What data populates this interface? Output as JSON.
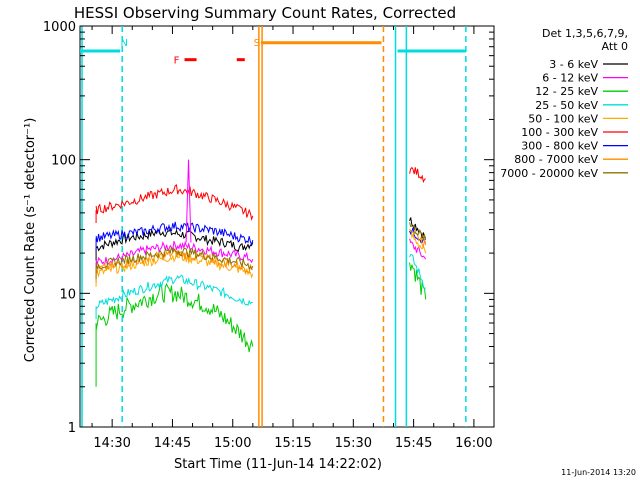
{
  "chart_data": {
    "type": "line",
    "title": "HESSI Observing Summary Count Rates, Corrected",
    "xlabel": "Start Time (11-Jun-14 14:22:02)",
    "ylabel": "Corrected Count Rate (s⁻¹ detector⁻¹)",
    "y_scale": "log",
    "ylim": [
      1,
      1000
    ],
    "xlim_minutes": [
      862,
      965
    ],
    "x_ticks": [
      {
        "label": "14:30",
        "minutes": 870
      },
      {
        "label": "14:45",
        "minutes": 885
      },
      {
        "label": "15:00",
        "minutes": 900
      },
      {
        "label": "15:15",
        "minutes": 915
      },
      {
        "label": "15:30",
        "minutes": 930
      },
      {
        "label": "15:45",
        "minutes": 945
      },
      {
        "label": "16:00",
        "minutes": 960
      }
    ],
    "y_ticks": [
      {
        "label": "1",
        "value": 1
      },
      {
        "label": "10",
        "value": 10
      },
      {
        "label": "100",
        "value": 100
      },
      {
        "label": "1000",
        "value": 1000
      }
    ],
    "legend": {
      "header": [
        "Det 1,3,5,6,7,9,",
        "Att 0"
      ],
      "placement": "right"
    },
    "series": [
      {
        "name": "3 - 6 keV",
        "color": "#000000",
        "points": [
          [
            866,
            22
          ],
          [
            870,
            24
          ],
          [
            874,
            26
          ],
          [
            878,
            27
          ],
          [
            882,
            29
          ],
          [
            886,
            28
          ],
          [
            890,
            27
          ],
          [
            894,
            25
          ],
          [
            898,
            24
          ],
          [
            902,
            22
          ],
          [
            905,
            24
          ]
        ],
        "points2": [
          [
            944,
            36
          ],
          [
            946,
            31
          ],
          [
            948,
            26
          ]
        ]
      },
      {
        "name": "6 - 12 keV",
        "color": "#ff00ff",
        "points": [
          [
            866,
            17
          ],
          [
            870,
            18
          ],
          [
            874,
            19
          ],
          [
            878,
            21
          ],
          [
            882,
            22
          ],
          [
            886,
            23
          ],
          [
            890,
            22
          ],
          [
            894,
            21
          ],
          [
            898,
            20
          ],
          [
            902,
            19
          ],
          [
            905,
            18
          ]
        ],
        "points2": [
          [
            944,
            24
          ],
          [
            946,
            21
          ],
          [
            948,
            18
          ]
        ]
      },
      {
        "name": "12 - 25 keV",
        "color": "#00cc00",
        "points": [
          [
            866,
            6
          ],
          [
            870,
            7
          ],
          [
            874,
            8
          ],
          [
            878,
            9
          ],
          [
            882,
            10
          ],
          [
            886,
            10
          ],
          [
            890,
            9
          ],
          [
            894,
            8
          ],
          [
            898,
            6.5
          ],
          [
            902,
            5
          ],
          [
            905,
            4
          ]
        ],
        "points2": [
          [
            944,
            18
          ],
          [
            946,
            13
          ],
          [
            948,
            9
          ]
        ]
      },
      {
        "name": "25 - 50 keV",
        "color": "#00dddd",
        "points": [
          [
            866,
            8
          ],
          [
            870,
            9
          ],
          [
            874,
            10
          ],
          [
            878,
            11
          ],
          [
            882,
            12
          ],
          [
            886,
            13
          ],
          [
            890,
            12
          ],
          [
            894,
            11
          ],
          [
            898,
            10
          ],
          [
            902,
            9
          ],
          [
            905,
            8.5
          ]
        ],
        "points2": [
          [
            944,
            20
          ],
          [
            946,
            15
          ],
          [
            948,
            11
          ]
        ]
      },
      {
        "name": "50 - 100 keV",
        "color": "#ffaa00",
        "points": [
          [
            866,
            14
          ],
          [
            870,
            15
          ],
          [
            874,
            16
          ],
          [
            878,
            17
          ],
          [
            882,
            18
          ],
          [
            886,
            19
          ],
          [
            890,
            18
          ],
          [
            894,
            17
          ],
          [
            898,
            16
          ],
          [
            902,
            15
          ],
          [
            905,
            14
          ]
        ],
        "points2": [
          [
            944,
            28
          ],
          [
            946,
            24
          ],
          [
            948,
            20
          ]
        ]
      },
      {
        "name": "100 - 300 keV",
        "color": "#ff0000",
        "points": [
          [
            866,
            42
          ],
          [
            870,
            45
          ],
          [
            874,
            48
          ],
          [
            878,
            52
          ],
          [
            882,
            56
          ],
          [
            886,
            60
          ],
          [
            890,
            57
          ],
          [
            894,
            52
          ],
          [
            898,
            47
          ],
          [
            902,
            42
          ],
          [
            905,
            38
          ]
        ],
        "points2": [
          [
            944,
            85
          ],
          [
            946,
            80
          ],
          [
            948,
            72
          ]
        ]
      },
      {
        "name": "300 - 800 keV",
        "color": "#0000ff",
        "points": [
          [
            866,
            26
          ],
          [
            870,
            27
          ],
          [
            874,
            28
          ],
          [
            878,
            29
          ],
          [
            882,
            31
          ],
          [
            886,
            32
          ],
          [
            890,
            31
          ],
          [
            894,
            30
          ],
          [
            898,
            28
          ],
          [
            902,
            26
          ],
          [
            905,
            25
          ]
        ],
        "points2": [
          [
            944,
            30
          ],
          [
            946,
            27
          ],
          [
            948,
            24
          ]
        ]
      },
      {
        "name": "800 - 7000 keV",
        "color": "#ff8c00",
        "points": [
          [
            866,
            15
          ],
          [
            870,
            16
          ],
          [
            874,
            17
          ],
          [
            878,
            18
          ],
          [
            882,
            19
          ],
          [
            886,
            20
          ],
          [
            890,
            19
          ],
          [
            894,
            18
          ],
          [
            898,
            17
          ],
          [
            902,
            16
          ],
          [
            905,
            15
          ]
        ],
        "points2": [
          [
            944,
            31
          ],
          [
            946,
            27
          ],
          [
            948,
            23
          ]
        ]
      },
      {
        "name": "7000 - 20000 keV",
        "color": "#8b7500",
        "points": [
          [
            866,
            16
          ],
          [
            870,
            17
          ],
          [
            874,
            18
          ],
          [
            878,
            19
          ],
          [
            882,
            20
          ],
          [
            886,
            21
          ],
          [
            890,
            20
          ],
          [
            894,
            19
          ],
          [
            898,
            18
          ],
          [
            902,
            17
          ],
          [
            905,
            16
          ]
        ],
        "points2": [
          [
            944,
            33
          ],
          [
            946,
            29
          ],
          [
            948,
            25
          ]
        ]
      }
    ],
    "spike": {
      "minutes": 889,
      "value": 100,
      "color": "#ff00ff"
    },
    "annotations": [
      {
        "label": "N",
        "minutes": 873,
        "color": "#00dddd"
      },
      {
        "label": "F",
        "minutes": 886,
        "color": "#ff0000"
      },
      {
        "label": "S",
        "minutes": 906,
        "color": "#ff8c00"
      }
    ],
    "flare_bars": [
      {
        "from": 888,
        "to": 891,
        "color": "#ff0000"
      },
      {
        "from": 901,
        "to": 903,
        "color": "#ff0000"
      }
    ],
    "saa_bar": {
      "from": 907,
      "to": 937,
      "value": 750,
      "color": "#ff8c00"
    },
    "night_bars": [
      {
        "from": 862,
        "to": 872,
        "value": 650,
        "color": "#00dddd"
      },
      {
        "from": 941,
        "to": 958,
        "value": 650,
        "color": "#00dddd"
      }
    ],
    "vertical_lines": [
      {
        "minutes": 862.5,
        "color": "#00dddd",
        "style": "solid"
      },
      {
        "minutes": 872.5,
        "color": "#00dddd",
        "style": "dashed"
      },
      {
        "minutes": 906.5,
        "color": "#ff8c00",
        "style": "solid"
      },
      {
        "minutes": 907.3,
        "color": "#ff8c00",
        "style": "solid"
      },
      {
        "minutes": 937.5,
        "color": "#ff8c00",
        "style": "dashed"
      },
      {
        "minutes": 940.5,
        "color": "#00dddd",
        "style": "solid"
      },
      {
        "minutes": 943.2,
        "color": "#00dddd",
        "style": "solid"
      },
      {
        "minutes": 958,
        "color": "#00dddd",
        "style": "dashed"
      }
    ],
    "footer_date": "11-Jun-2014 13:20"
  }
}
